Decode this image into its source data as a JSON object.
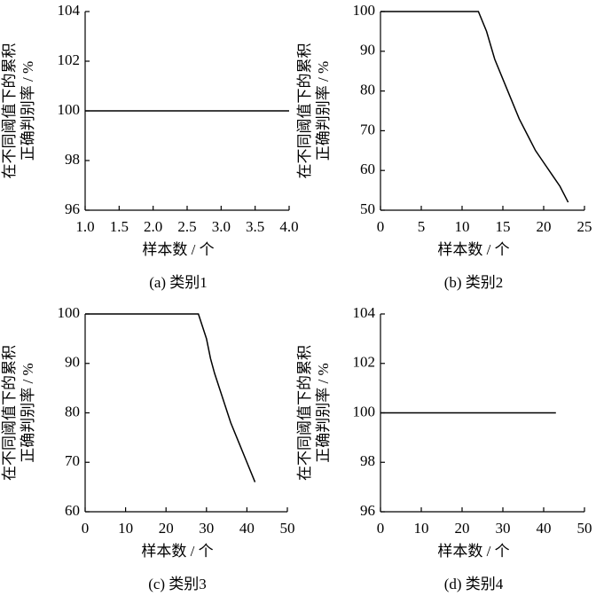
{
  "chart_data": [
    {
      "type": "line",
      "caption": "(a) 类别1",
      "xlabel": "样本数 / 个",
      "ylabel": [
        "在不同阈值下的累积",
        "正确判别率 / %"
      ],
      "x": [
        1,
        4
      ],
      "values": [
        100,
        100
      ],
      "color": "#000000",
      "xlim": [
        1,
        4
      ],
      "xticks": [
        {
          "value": 1,
          "label": "1.0"
        },
        {
          "value": 1.5,
          "label": "1.5"
        },
        {
          "value": 2,
          "label": "2.0"
        },
        {
          "value": 2.5,
          "label": "2.5"
        },
        {
          "value": 3,
          "label": "3.0"
        },
        {
          "value": 3.5,
          "label": "3.5"
        },
        {
          "value": 4,
          "label": "4.0"
        }
      ],
      "ylim": [
        96,
        104
      ],
      "yticks": [
        96,
        98,
        100,
        102,
        104
      ]
    },
    {
      "type": "line",
      "caption": "(b) 类别2",
      "xlabel": "样本数 / 个",
      "ylabel": [
        "在不同阈值下的累积",
        "正确判别率 / %"
      ],
      "x": [
        0,
        12,
        13,
        14,
        15,
        16,
        17,
        18,
        19,
        20,
        21,
        22,
        23
      ],
      "values": [
        100,
        100,
        95,
        88,
        83,
        78,
        73,
        69,
        65,
        62,
        59,
        56,
        52
      ],
      "color": "#000000",
      "xlim": [
        0,
        25
      ],
      "xticks": [
        0,
        5,
        10,
        15,
        20,
        25
      ],
      "ylim": [
        50,
        100
      ],
      "yticks": [
        50,
        60,
        70,
        80,
        90,
        100
      ]
    },
    {
      "type": "line",
      "caption": "(c) 类别3",
      "xlabel": "样本数 / 个",
      "ylabel": [
        "在不同阈值下的累积",
        "正确判别率 / %"
      ],
      "x": [
        0,
        28,
        30,
        31,
        32,
        34,
        36,
        38,
        40,
        42
      ],
      "values": [
        100,
        100,
        95,
        91,
        88,
        83,
        78,
        74,
        70,
        66
      ],
      "color": "#000000",
      "xlim": [
        0,
        50
      ],
      "xticks": [
        0,
        10,
        20,
        30,
        40,
        50
      ],
      "ylim": [
        60,
        100
      ],
      "yticks": [
        60,
        70,
        80,
        90,
        100
      ]
    },
    {
      "type": "line",
      "caption": "(d) 类别4",
      "xlabel": "样本数 / 个",
      "ylabel": [
        "在不同阈值下的累积",
        "正确判别率 / %"
      ],
      "x": [
        0,
        43
      ],
      "values": [
        100,
        100
      ],
      "color": "#000000",
      "xlim": [
        0,
        50
      ],
      "xticks": [
        0,
        10,
        20,
        30,
        40,
        50
      ],
      "ylim": [
        96,
        104
      ],
      "yticks": [
        96,
        98,
        100,
        102,
        104
      ]
    }
  ]
}
